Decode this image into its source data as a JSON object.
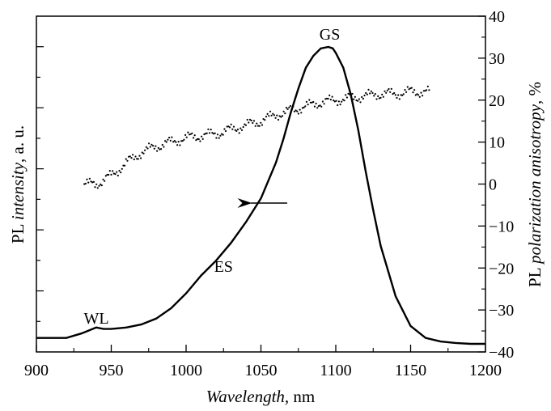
{
  "chart_data": {
    "type": "line",
    "xlabel": {
      "italic": "Wavelength",
      "unit": ", nm"
    },
    "ylabel_left": {
      "plain": "PL ",
      "italic": "intensity",
      "unit": ", a. u."
    },
    "ylabel_right": {
      "plain": "PL ",
      "italic": "polarization anisotropy",
      "unit": ", %"
    },
    "xlim": [
      900,
      1200
    ],
    "xticks": [
      900,
      950,
      1000,
      1050,
      1100,
      1150,
      1200
    ],
    "ylim_right": [
      -40,
      40
    ],
    "yticks_right": [
      -40,
      -30,
      -20,
      -10,
      0,
      10,
      20,
      30,
      40
    ],
    "ytick_labels_right": [
      "−40",
      "−30",
      "−20",
      "−10",
      "0",
      "10",
      "20",
      "30",
      "40"
    ],
    "ylim_left": [
      0,
      1
    ],
    "grid": false,
    "series": [
      {
        "axis": "left",
        "style": "solid",
        "x": [
          900,
          910,
          920,
          930,
          935,
          940,
          945,
          950,
          960,
          970,
          980,
          990,
          1000,
          1010,
          1020,
          1030,
          1040,
          1050,
          1060,
          1065,
          1070,
          1075,
          1080,
          1085,
          1090,
          1095,
          1098,
          1100,
          1105,
          1110,
          1115,
          1120,
          1125,
          1130,
          1140,
          1150,
          1160,
          1170,
          1180,
          1190,
          1200
        ],
        "y": [
          0.02,
          0.02,
          0.02,
          0.035,
          0.045,
          0.055,
          0.05,
          0.05,
          0.055,
          0.065,
          0.085,
          0.12,
          0.17,
          0.23,
          0.28,
          0.34,
          0.41,
          0.49,
          0.61,
          0.69,
          0.78,
          0.86,
          0.93,
          0.97,
          0.995,
          1.0,
          0.995,
          0.98,
          0.93,
          0.84,
          0.72,
          0.58,
          0.45,
          0.33,
          0.16,
          0.06,
          0.02,
          0.008,
          0.003,
          0.0,
          0.0
        ]
      },
      {
        "axis": "right",
        "style": "dotted",
        "x": [
          932,
          940,
          950,
          960,
          970,
          980,
          990,
          1000,
          1010,
          1020,
          1030,
          1040,
          1050,
          1060,
          1070,
          1080,
          1090,
          1100,
          1110,
          1120,
          1130,
          1140,
          1150,
          1163
        ],
        "y": [
          0,
          0,
          2,
          5,
          7.5,
          9,
          10,
          11,
          11.5,
          12,
          13,
          14,
          15,
          16.5,
          17.5,
          18.5,
          19.5,
          20,
          20.5,
          21,
          21.5,
          21.5,
          22,
          22
        ]
      }
    ],
    "annotations": [
      {
        "text": "GS",
        "x": 1096
      },
      {
        "text": "ES",
        "x": 1025
      },
      {
        "text": "WL",
        "x": 940
      }
    ],
    "arrow": {
      "direction": "left"
    }
  }
}
